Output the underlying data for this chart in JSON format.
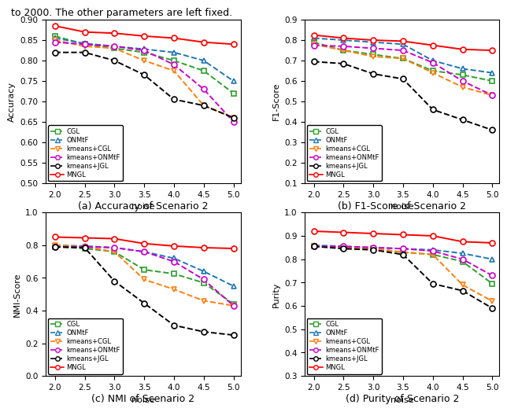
{
  "x": [
    2.0,
    2.5,
    3.0,
    3.5,
    4.0,
    4.5,
    5.0
  ],
  "accuracy": {
    "CGL": [
      0.86,
      0.84,
      0.83,
      0.82,
      0.8,
      0.775,
      0.72
    ],
    "ONMtF": [
      0.855,
      0.842,
      0.835,
      0.828,
      0.82,
      0.8,
      0.75
    ],
    "kmeans+CGL": [
      0.85,
      0.835,
      0.83,
      0.8,
      0.775,
      0.69,
      0.66
    ],
    "kmeans+ONMtF": [
      0.845,
      0.84,
      0.835,
      0.825,
      0.79,
      0.73,
      0.65
    ],
    "kmeans+JGL": [
      0.82,
      0.82,
      0.8,
      0.765,
      0.705,
      0.69,
      0.66
    ],
    "MNGL": [
      0.885,
      0.87,
      0.867,
      0.86,
      0.855,
      0.845,
      0.84
    ]
  },
  "f1score": {
    "CGL": [
      0.79,
      0.75,
      0.73,
      0.71,
      0.65,
      0.63,
      0.6
    ],
    "ONMtF": [
      0.81,
      0.8,
      0.79,
      0.78,
      0.7,
      0.66,
      0.64
    ],
    "kmeans+CGL": [
      0.78,
      0.75,
      0.72,
      0.71,
      0.64,
      0.57,
      0.53
    ],
    "kmeans+ONMtF": [
      0.775,
      0.77,
      0.76,
      0.75,
      0.69,
      0.6,
      0.53
    ],
    "kmeans+JGL": [
      0.695,
      0.685,
      0.635,
      0.61,
      0.46,
      0.41,
      0.36
    ],
    "MNGL": [
      0.825,
      0.81,
      0.8,
      0.795,
      0.775,
      0.755,
      0.75
    ]
  },
  "nmi": {
    "CGL": [
      0.79,
      0.78,
      0.76,
      0.65,
      0.625,
      0.57,
      0.44
    ],
    "ONMtF": [
      0.8,
      0.795,
      0.785,
      0.76,
      0.72,
      0.64,
      0.55
    ],
    "kmeans+CGL": [
      0.8,
      0.79,
      0.76,
      0.59,
      0.53,
      0.46,
      0.43
    ],
    "kmeans+ONMtF": [
      0.79,
      0.79,
      0.785,
      0.76,
      0.7,
      0.59,
      0.43
    ],
    "kmeans+JGL": [
      0.79,
      0.785,
      0.58,
      0.445,
      0.31,
      0.27,
      0.25
    ],
    "MNGL": [
      0.85,
      0.845,
      0.84,
      0.81,
      0.795,
      0.785,
      0.78
    ]
  },
  "purity": {
    "CGL": [
      0.855,
      0.85,
      0.845,
      0.83,
      0.82,
      0.79,
      0.695
    ],
    "ONMtF": [
      0.86,
      0.855,
      0.85,
      0.845,
      0.84,
      0.825,
      0.8
    ],
    "kmeans+CGL": [
      0.855,
      0.85,
      0.845,
      0.83,
      0.82,
      0.69,
      0.62
    ],
    "kmeans+ONMtF": [
      0.855,
      0.855,
      0.85,
      0.845,
      0.835,
      0.8,
      0.73
    ],
    "kmeans+JGL": [
      0.855,
      0.845,
      0.84,
      0.82,
      0.695,
      0.665,
      0.59
    ],
    "MNGL": [
      0.92,
      0.915,
      0.91,
      0.905,
      0.9,
      0.875,
      0.87
    ]
  },
  "methods": [
    "CGL",
    "ONMtF",
    "kmeans+CGL",
    "kmeans+ONMtF",
    "kmeans+JGL",
    "MNGL"
  ],
  "colors": [
    "#2ca02c",
    "#1f77b4",
    "#ff7f0e",
    "#cc00cc",
    "#000000",
    "#ff0000"
  ],
  "markers": [
    "s",
    "^",
    "v",
    "o",
    "o",
    "o"
  ],
  "linestyles": [
    "--",
    "--",
    "--",
    "--",
    "--",
    "-"
  ],
  "legend_labels": [
    "CGL",
    "ONMtF",
    "kmeans+CGL",
    "kmeans+ONMtF",
    "kmeans+JGL",
    "MNGL"
  ],
  "ylims": {
    "accuracy": [
      0.5,
      0.9
    ],
    "f1score": [
      0.1,
      0.9
    ],
    "nmi": [
      0.0,
      1.0
    ],
    "purity": [
      0.3,
      1.0
    ]
  },
  "yticks": {
    "accuracy": [
      0.5,
      0.55,
      0.6,
      0.65,
      0.7,
      0.75,
      0.8,
      0.85,
      0.9
    ],
    "f1score": [
      0.1,
      0.2,
      0.3,
      0.4,
      0.5,
      0.6,
      0.7,
      0.8,
      0.9
    ],
    "nmi": [
      0.0,
      0.2,
      0.4,
      0.6,
      0.8,
      1.0
    ],
    "purity": [
      0.3,
      0.4,
      0.5,
      0.6,
      0.7,
      0.8,
      0.9,
      1.0
    ]
  },
  "subtitles": [
    "(a) Accuracy of Scenario 2",
    "(b) F1-Score of Scenario 2",
    "(c) NMI of Scenario 2",
    "(d) Purity of Scenario 2"
  ],
  "ylabels": [
    "Accuracy",
    "F1-Score",
    "NMI-Score",
    "Purity"
  ],
  "header_text": "to 2000. The other parameters are left fixed.",
  "fig_width": 6.4,
  "fig_height": 5.09,
  "dpi": 100
}
